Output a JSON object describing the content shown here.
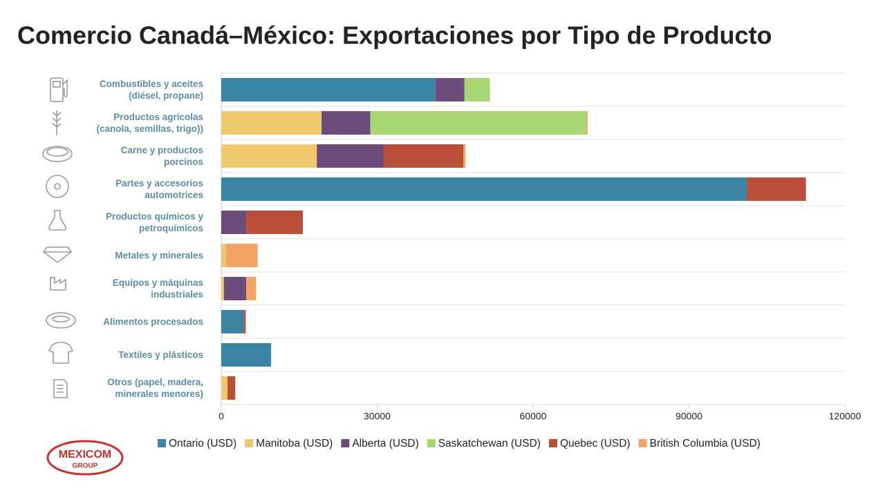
{
  "chart_data": {
    "type": "stacked-barh",
    "title": "Comercio Canadá–México: Exportaciones por Tipo de Producto",
    "categories": [
      "Combustibles y aceites\n(diésel, propane)",
      "Productos agrícolas\n(canola, semillas, trigo))",
      "Carne y productos\nporcinos",
      "Partes y accesorios\nautomotrices",
      "Productos químicos y\npetroquímicos",
      "Metales y minerales",
      "Equipos y máquinas\nindustriales",
      "Alimentos procesados",
      "Textiles y plásticos",
      "Otros (papel, madera,\nminerales menores)"
    ],
    "series": [
      {
        "name": "Ontario (USD)",
        "color": "#3b84a3",
        "values": [
          41200,
          0,
          0,
          101100,
          0,
          0,
          0,
          4300,
          9600,
          0
        ]
      },
      {
        "name": "Manitoba (USD)",
        "color": "#f0c96e",
        "values": [
          0,
          19300,
          18400,
          0,
          0,
          900,
          500,
          0,
          0,
          1200
        ]
      },
      {
        "name": "Alberta (USD)",
        "color": "#6b4c7a",
        "values": [
          5600,
          9400,
          12800,
          0,
          4800,
          0,
          4300,
          0,
          0,
          0
        ]
      },
      {
        "name": "Saskatchewan (USD)",
        "color": "#a8d672",
        "values": [
          4900,
          41500,
          0,
          0,
          0,
          0,
          0,
          0,
          0,
          0
        ]
      },
      {
        "name": "Quebec (USD)",
        "color": "#b94f38",
        "values": [
          0,
          0,
          15400,
          11400,
          10900,
          0,
          0,
          400,
          0,
          1500
        ]
      },
      {
        "name": "British Columbia (USD)",
        "color": "#f2a567",
        "values": [
          0,
          300,
          400,
          0,
          0,
          6100,
          1900,
          0,
          0,
          0
        ]
      }
    ],
    "xlim": [
      0,
      120000
    ],
    "xticks": [
      0,
      30000,
      60000,
      90000,
      120000
    ],
    "legend": "bottom"
  },
  "logo": {
    "line1": "MEXICOM",
    "line2": "GROUP"
  }
}
